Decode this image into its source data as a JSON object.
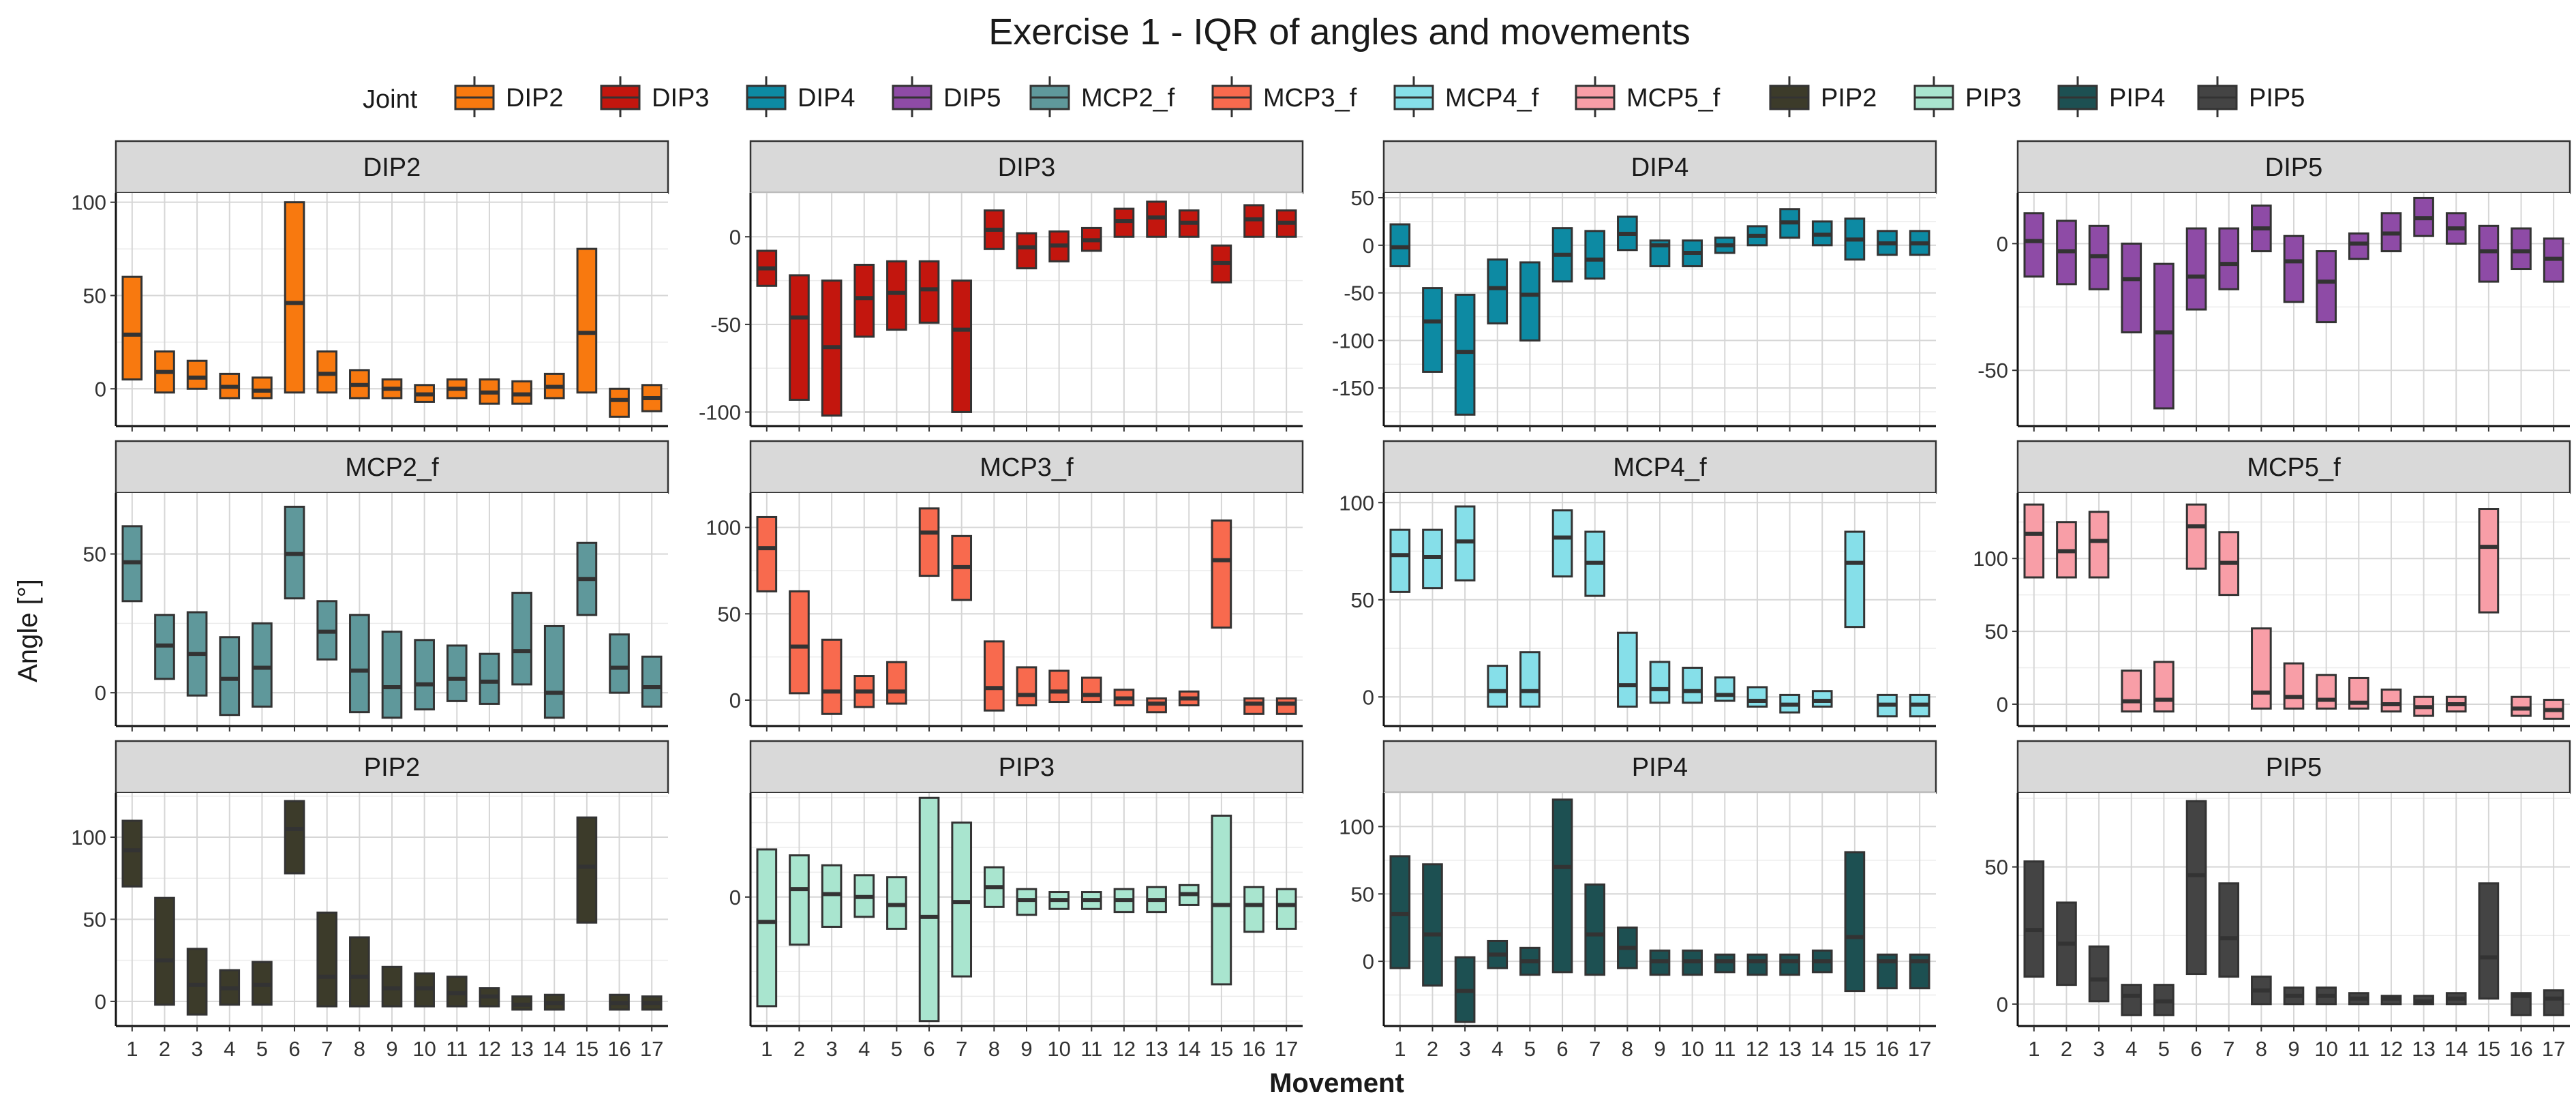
{
  "chart_data": {
    "type": "boxplot-faceted",
    "title": "Exercise 1 - IQR of angles and movements",
    "xlabel": "Movement",
    "ylabel": "Angle [°]",
    "legend": {
      "title": "Joint",
      "placement": "top",
      "entries": [
        "DIP2",
        "DIP3",
        "DIP4",
        "DIP5",
        "MCP2_f",
        "MCP3_f",
        "MCP4_f",
        "MCP5_f",
        "PIP2",
        "PIP3",
        "PIP4",
        "PIP5"
      ]
    },
    "grid": true,
    "categories": [
      "1",
      "2",
      "3",
      "4",
      "5",
      "6",
      "7",
      "8",
      "9",
      "10",
      "11",
      "12",
      "13",
      "14",
      "15",
      "16",
      "17"
    ],
    "colors": {
      "DIP2": "#F8790F",
      "DIP3": "#C3160E",
      "DIP4": "#0D8AA3",
      "DIP5": "#8E4BA6",
      "MCP2_f": "#5F989B",
      "MCP3_f": "#F86A4E",
      "MCP4_f": "#86DFE9",
      "MCP5_f": "#F89EA7",
      "PIP2": "#3C3B2A",
      "PIP3": "#A9E5CF",
      "PIP4": "#1D5052",
      "PIP5": "#444444"
    },
    "facets": [
      {
        "joint": "DIP2",
        "ylim": [
          -20,
          105
        ],
        "yticks": [
          0,
          50,
          100
        ],
        "q1": [
          5,
          -2,
          0,
          -5,
          -5,
          -2,
          -2,
          -5,
          -5,
          -7,
          -5,
          -8,
          -8,
          -5,
          -2,
          -15,
          -12
        ],
        "median": [
          29,
          9,
          6,
          1,
          -1,
          46,
          8,
          2,
          0,
          -3,
          0,
          -2,
          -3,
          1,
          30,
          -6,
          -5
        ],
        "q3": [
          60,
          20,
          15,
          8,
          6,
          100,
          20,
          10,
          5,
          2,
          5,
          5,
          4,
          8,
          75,
          0,
          2
        ]
      },
      {
        "joint": "DIP3",
        "ylim": [
          -108,
          25
        ],
        "yticks": [
          -100,
          -50,
          0
        ],
        "q1": [
          -28,
          -93,
          -102,
          -57,
          -53,
          -49,
          -100,
          -7,
          -18,
          -14,
          -8,
          0,
          0,
          0,
          -26,
          0,
          0
        ],
        "median": [
          -18,
          -46,
          -63,
          -35,
          -32,
          -30,
          -53,
          4,
          -6,
          -5,
          -2,
          9,
          11,
          8,
          -15,
          10,
          8
        ],
        "q3": [
          -8,
          -22,
          -25,
          -16,
          -14,
          -14,
          -25,
          15,
          2,
          3,
          5,
          16,
          20,
          15,
          -5,
          18,
          15
        ]
      },
      {
        "joint": "DIP4",
        "ylim": [
          -190,
          55
        ],
        "yticks": [
          -150,
          -100,
          -50,
          0,
          50
        ],
        "q1": [
          -22,
          -133,
          -178,
          -82,
          -100,
          -38,
          -35,
          -5,
          -22,
          -22,
          -8,
          0,
          8,
          0,
          -15,
          -10,
          -10
        ],
        "median": [
          -2,
          -80,
          -112,
          -45,
          -52,
          -10,
          -15,
          12,
          0,
          -8,
          0,
          10,
          24,
          11,
          6,
          2,
          2
        ],
        "q3": [
          22,
          -45,
          -52,
          -15,
          -18,
          18,
          15,
          30,
          5,
          5,
          8,
          20,
          38,
          25,
          28,
          15,
          15
        ]
      },
      {
        "joint": "DIP5",
        "ylim": [
          -72,
          20
        ],
        "yticks": [
          -50,
          0
        ],
        "q1": [
          -13,
          -16,
          -18,
          -35,
          -65,
          -26,
          -18,
          -3,
          -23,
          -31,
          -6,
          -3,
          3,
          0,
          -15,
          -10,
          -15
        ],
        "median": [
          1,
          -3,
          -5,
          -14,
          -35,
          -13,
          -8,
          6,
          -7,
          -15,
          0,
          4,
          10,
          6,
          -3,
          -3,
          -6
        ],
        "q3": [
          12,
          9,
          7,
          0,
          -8,
          6,
          6,
          15,
          3,
          -3,
          4,
          12,
          18,
          12,
          7,
          6,
          2
        ]
      },
      {
        "joint": "MCP2_f",
        "ylim": [
          -12,
          72
        ],
        "yticks": [
          0,
          50
        ],
        "q1": [
          33,
          5,
          -1,
          -8,
          -5,
          34,
          12,
          -7,
          -9,
          -6,
          -3,
          -4,
          3,
          -9,
          28,
          0,
          -5
        ],
        "median": [
          47,
          17,
          14,
          5,
          9,
          50,
          22,
          8,
          2,
          3,
          5,
          4,
          15,
          0,
          41,
          9,
          2
        ],
        "q3": [
          60,
          28,
          29,
          20,
          25,
          67,
          33,
          28,
          22,
          19,
          17,
          14,
          36,
          24,
          54,
          21,
          13
        ]
      },
      {
        "joint": "MCP3_f",
        "ylim": [
          -15,
          120
        ],
        "yticks": [
          0,
          50,
          100
        ],
        "q1": [
          63,
          4,
          -8,
          -4,
          -2,
          72,
          58,
          -6,
          -3,
          -1,
          -1,
          -3,
          -7,
          -3,
          42,
          -8,
          -8
        ],
        "median": [
          88,
          31,
          5,
          5,
          5,
          97,
          77,
          7,
          3,
          5,
          3,
          1,
          -2,
          1,
          81,
          -2,
          -2
        ],
        "q3": [
          106,
          63,
          35,
          14,
          22,
          111,
          95,
          34,
          19,
          17,
          13,
          6,
          1,
          5,
          104,
          1,
          1
        ]
      },
      {
        "joint": "MCP4_f",
        "ylim": [
          -15,
          105
        ],
        "yticks": [
          0,
          50,
          100
        ],
        "q1": [
          54,
          56,
          60,
          -5,
          -5,
          62,
          52,
          -5,
          -3,
          -3,
          -2,
          -5,
          -8,
          -5,
          36,
          -10,
          -10
        ],
        "median": [
          73,
          72,
          80,
          3,
          3,
          82,
          69,
          6,
          4,
          3,
          1,
          -2,
          -4,
          -2,
          69,
          -4,
          -4
        ],
        "q3": [
          86,
          86,
          98,
          16,
          23,
          96,
          85,
          33,
          18,
          15,
          10,
          5,
          1,
          3,
          85,
          1,
          1
        ]
      },
      {
        "joint": "MCP5_f",
        "ylim": [
          -15,
          145
        ],
        "yticks": [
          0,
          50,
          100
        ],
        "q1": [
          87,
          87,
          87,
          -5,
          -5,
          93,
          75,
          -3,
          -3,
          -3,
          -3,
          -5,
          -8,
          -5,
          63,
          -8,
          -10
        ],
        "median": [
          117,
          105,
          112,
          2,
          3,
          122,
          97,
          8,
          5,
          3,
          1,
          0,
          -2,
          0,
          108,
          -3,
          -4
        ],
        "q3": [
          137,
          125,
          132,
          23,
          29,
          137,
          118,
          52,
          28,
          20,
          18,
          10,
          5,
          5,
          134,
          5,
          3
        ]
      },
      {
        "joint": "PIP2",
        "ylim": [
          -15,
          127
        ],
        "yticks": [
          0,
          50,
          100
        ],
        "q1": [
          70,
          -2,
          -8,
          -2,
          -2,
          78,
          -3,
          -3,
          -3,
          -3,
          -3,
          -3,
          -5,
          -5,
          48,
          -5,
          -5
        ],
        "median": [
          92,
          25,
          10,
          8,
          10,
          105,
          15,
          15,
          8,
          8,
          5,
          3,
          -2,
          -1,
          82,
          -1,
          -1
        ],
        "q3": [
          110,
          63,
          32,
          19,
          24,
          122,
          54,
          39,
          21,
          17,
          15,
          8,
          3,
          4,
          112,
          4,
          3
        ]
      },
      {
        "joint": "PIP3",
        "ylim": [
          -130,
          105
        ],
        "yticks": [
          0
        ],
        "q1": [
          -110,
          -48,
          -30,
          -20,
          -32,
          -125,
          -80,
          -10,
          -18,
          -12,
          -12,
          -15,
          -15,
          -8,
          -88,
          -35,
          -32
        ],
        "median": [
          -25,
          8,
          3,
          0,
          -8,
          -20,
          -5,
          10,
          -3,
          -3,
          -3,
          -3,
          -3,
          3,
          -8,
          -8,
          -8
        ],
        "q3": [
          48,
          42,
          32,
          22,
          20,
          100,
          75,
          30,
          8,
          5,
          5,
          8,
          10,
          12,
          82,
          10,
          8
        ]
      },
      {
        "joint": "PIP4",
        "ylim": [
          -48,
          125
        ],
        "yticks": [
          0,
          50,
          100
        ],
        "q1": [
          -5,
          -18,
          -45,
          -5,
          -10,
          -8,
          -10,
          -5,
          -10,
          -10,
          -8,
          -10,
          -10,
          -8,
          -22,
          -20,
          -20
        ],
        "median": [
          35,
          20,
          -22,
          5,
          0,
          70,
          20,
          10,
          0,
          0,
          0,
          0,
          0,
          0,
          18,
          0,
          0
        ],
        "q3": [
          78,
          72,
          3,
          15,
          10,
          120,
          57,
          25,
          8,
          8,
          5,
          5,
          5,
          8,
          81,
          5,
          5
        ]
      },
      {
        "joint": "PIP5",
        "ylim": [
          -8,
          77
        ],
        "yticks": [
          0,
          50
        ],
        "q1": [
          10,
          7,
          1,
          -4,
          -4,
          11,
          10,
          0,
          0,
          0,
          0,
          0,
          0,
          0,
          2,
          -4,
          -4
        ],
        "median": [
          27,
          22,
          9,
          3,
          1,
          47,
          24,
          5,
          3,
          3,
          2,
          2,
          1,
          2,
          17,
          3,
          2
        ],
        "q3": [
          52,
          37,
          21,
          7,
          7,
          74,
          44,
          10,
          6,
          6,
          4,
          3,
          3,
          4,
          44,
          4,
          5
        ]
      }
    ]
  }
}
